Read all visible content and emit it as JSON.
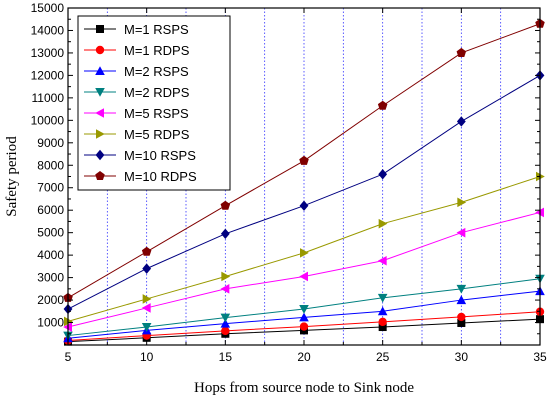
{
  "chart_data": {
    "type": "line",
    "xlabel": "Hops from source node to Sink node",
    "ylabel": "Safety period",
    "xlim": [
      5,
      35
    ],
    "ylim": [
      0,
      15000
    ],
    "x_ticks": [
      5,
      10,
      15,
      20,
      25,
      30,
      35
    ],
    "y_ticks": [
      1000,
      2000,
      3000,
      4000,
      5000,
      6000,
      7000,
      8000,
      9000,
      10000,
      11000,
      12000,
      13000,
      14000,
      15000
    ],
    "grid": "vertical dotted blue",
    "legend_position": "top-left",
    "x": [
      5,
      10,
      15,
      20,
      25,
      30,
      35
    ],
    "series": [
      {
        "name": "M=1 RSPS",
        "color": "#000000",
        "marker": "square",
        "values": [
          150,
          320,
          500,
          650,
          800,
          980,
          1150
        ]
      },
      {
        "name": "M=1 RDPS",
        "color": "#ff0000",
        "marker": "circle",
        "values": [
          200,
          420,
          630,
          820,
          1030,
          1250,
          1480
        ]
      },
      {
        "name": "M=2 RSPS",
        "color": "#0000ff",
        "marker": "triangle-up",
        "values": [
          300,
          650,
          950,
          1230,
          1500,
          2000,
          2400
        ]
      },
      {
        "name": "M=2 RDPS",
        "color": "#008080",
        "marker": "triangle-down",
        "values": [
          420,
          800,
          1220,
          1600,
          2100,
          2500,
          2950
        ]
      },
      {
        "name": "M=5 RSPS",
        "color": "#ff00ff",
        "marker": "triangle-left",
        "values": [
          800,
          1650,
          2500,
          3050,
          3750,
          5000,
          5900
        ]
      },
      {
        "name": "M=5 RDPS",
        "color": "#999900",
        "marker": "triangle-right",
        "values": [
          1050,
          2050,
          3050,
          4100,
          5400,
          6350,
          7500
        ]
      },
      {
        "name": "M=10 RSPS",
        "color": "#000080",
        "marker": "diamond",
        "values": [
          1600,
          3400,
          4950,
          6200,
          7600,
          9950,
          12000
        ]
      },
      {
        "name": "M=10 RDPS",
        "color": "#800000",
        "marker": "pentagon",
        "values": [
          2100,
          4150,
          6200,
          8200,
          10650,
          13000,
          14300
        ]
      }
    ]
  }
}
